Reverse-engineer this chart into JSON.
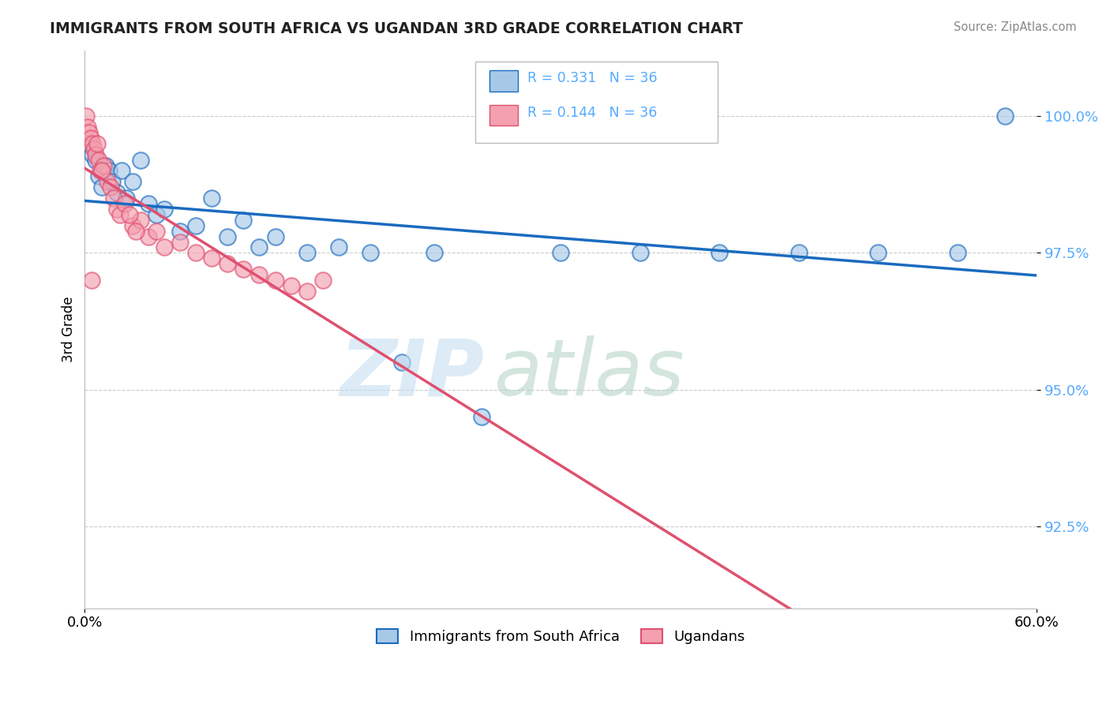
{
  "title": "IMMIGRANTS FROM SOUTH AFRICA VS UGANDAN 3RD GRADE CORRELATION CHART",
  "source": "Source: ZipAtlas.com",
  "ylabel": "3rd Grade",
  "y_ticks": [
    92.5,
    95.0,
    97.5,
    100.0
  ],
  "y_tick_labels": [
    "92.5%",
    "95.0%",
    "97.5%",
    "100.0%"
  ],
  "xlim": [
    0.0,
    60.0
  ],
  "ylim": [
    91.0,
    101.2
  ],
  "legend_label_blue": "Immigrants from South Africa",
  "legend_label_pink": "Ugandans",
  "blue_scatter_x": [
    0.3,
    0.5,
    0.7,
    0.9,
    1.1,
    1.3,
    1.5,
    1.7,
    2.0,
    2.3,
    2.6,
    3.0,
    3.5,
    4.0,
    4.5,
    5.0,
    6.0,
    7.0,
    8.0,
    9.0,
    10.0,
    11.0,
    12.0,
    14.0,
    16.0,
    18.0,
    20.0,
    22.0,
    25.0,
    30.0,
    35.0,
    40.0,
    45.0,
    50.0,
    55.0,
    58.0
  ],
  "blue_scatter_y": [
    99.5,
    99.3,
    99.2,
    98.9,
    98.7,
    99.1,
    99.0,
    98.8,
    98.6,
    99.0,
    98.5,
    98.8,
    99.2,
    98.4,
    98.2,
    98.3,
    97.9,
    98.0,
    98.5,
    97.8,
    98.1,
    97.6,
    97.8,
    97.5,
    97.6,
    97.5,
    95.5,
    97.5,
    94.5,
    97.5,
    97.5,
    97.5,
    97.5,
    97.5,
    97.5,
    100.0
  ],
  "pink_scatter_x": [
    0.1,
    0.2,
    0.3,
    0.4,
    0.5,
    0.6,
    0.7,
    0.8,
    0.9,
    1.0,
    1.2,
    1.4,
    1.6,
    1.8,
    2.0,
    2.2,
    2.5,
    3.0,
    3.5,
    4.0,
    4.5,
    5.0,
    6.0,
    7.0,
    8.0,
    9.0,
    10.0,
    11.0,
    12.0,
    13.0,
    14.0,
    15.0,
    2.8,
    3.2,
    1.1,
    0.45
  ],
  "pink_scatter_y": [
    100.0,
    99.8,
    99.7,
    99.6,
    99.5,
    99.4,
    99.3,
    99.5,
    99.2,
    99.0,
    99.1,
    98.8,
    98.7,
    98.5,
    98.3,
    98.2,
    98.4,
    98.0,
    98.1,
    97.8,
    97.9,
    97.6,
    97.7,
    97.5,
    97.4,
    97.3,
    97.2,
    97.1,
    97.0,
    96.9,
    96.8,
    97.0,
    98.2,
    97.9,
    99.0,
    97.0
  ],
  "blue_color": "#a8c8e8",
  "pink_color": "#f4a0b0",
  "blue_line_color": "#1a6bbf",
  "pink_line_color": "#e05070",
  "background_color": "#ffffff",
  "grid_color": "#cccccc",
  "tick_color": "#55aaff"
}
